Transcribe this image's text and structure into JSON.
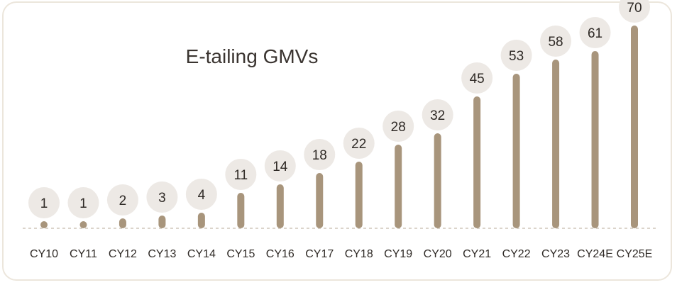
{
  "chart_data": {
    "type": "bar",
    "title": "E-tailing GMVs",
    "xlabel": "",
    "ylabel": "",
    "categories": [
      "CY10",
      "CY11",
      "CY12",
      "CY13",
      "CY14",
      "CY15",
      "CY16",
      "CY17",
      "CY18",
      "CY19",
      "CY20",
      "CY21",
      "CY22",
      "CY23",
      "CY24E",
      "CY25E"
    ],
    "values": [
      1,
      1,
      2,
      3,
      4,
      11,
      14,
      18,
      22,
      28,
      32,
      45,
      53,
      58,
      61,
      70
    ],
    "value_labels": [
      "1",
      "1",
      "2",
      "3",
      "4",
      "11",
      "14",
      "18",
      "22",
      "28",
      "32",
      "45",
      "53",
      "58",
      "61",
      "70"
    ],
    "ylim": [
      0,
      70
    ],
    "grid": false,
    "legend": "none",
    "colors": {
      "bar": "#a8957c",
      "bubble": "#ede9e5",
      "baseline": "#cfc6ba",
      "card_border": "#ece6dc",
      "text": "#2f2a26"
    }
  }
}
